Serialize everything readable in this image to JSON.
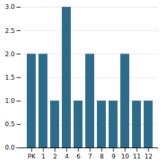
{
  "chart_data": {
    "type": "bar",
    "categories": [
      "PK",
      "1",
      "2",
      "4",
      "6",
      "7",
      "8",
      "9",
      "10",
      "11",
      "12"
    ],
    "values": [
      2,
      2,
      1,
      3,
      1,
      2,
      1,
      1,
      2,
      1,
      1
    ],
    "color": "#2e6b8a",
    "ylim": [
      0,
      3
    ],
    "yticks": [
      0,
      0.5,
      1,
      1.5,
      2,
      2.5,
      3
    ],
    "grid": true
  }
}
